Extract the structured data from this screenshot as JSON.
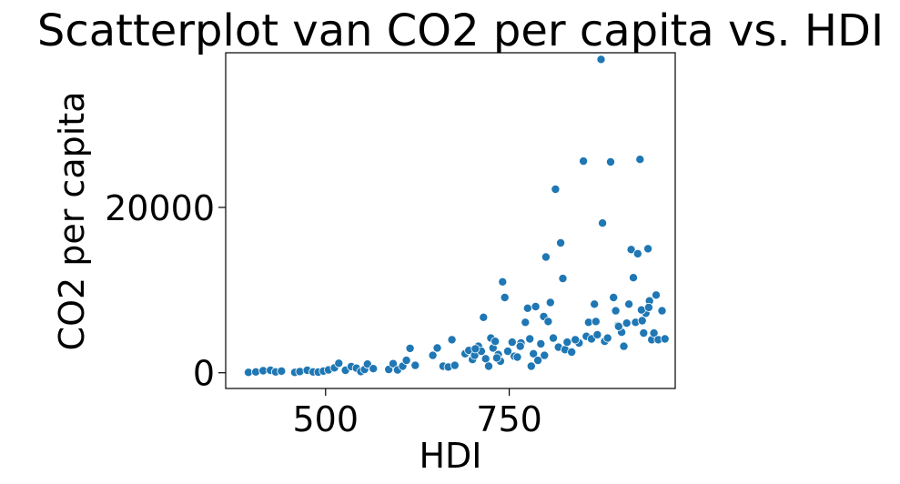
{
  "chart_data": {
    "type": "scatter",
    "title": "Scatterplot van CO2 per capita vs. HDI",
    "xlabel": "HDI",
    "ylabel": "CO2 per capita",
    "xlim": [
      364,
      976
    ],
    "ylim": [
      -1900,
      38700
    ],
    "xticks": [
      500,
      750
    ],
    "yticks": [
      0,
      20000
    ],
    "grid": false,
    "legend": "none",
    "marker_color": "#1f77b4",
    "marker_edge": "#ffffff",
    "points": [
      [
        395,
        50
      ],
      [
        405,
        100
      ],
      [
        415,
        250
      ],
      [
        425,
        300
      ],
      [
        432,
        100
      ],
      [
        440,
        200
      ],
      [
        458,
        50
      ],
      [
        465,
        150
      ],
      [
        475,
        300
      ],
      [
        483,
        100
      ],
      [
        490,
        80
      ],
      [
        497,
        200
      ],
      [
        504,
        350
      ],
      [
        512,
        600
      ],
      [
        518,
        1150
      ],
      [
        527,
        300
      ],
      [
        535,
        750
      ],
      [
        542,
        550
      ],
      [
        548,
        150
      ],
      [
        553,
        400
      ],
      [
        557,
        1050
      ],
      [
        565,
        500
      ],
      [
        586,
        400
      ],
      [
        592,
        1100
      ],
      [
        598,
        350
      ],
      [
        605,
        800
      ],
      [
        610,
        1500
      ],
      [
        615,
        2950
      ],
      [
        622,
        900
      ],
      [
        646,
        2100
      ],
      [
        652,
        3000
      ],
      [
        660,
        800
      ],
      [
        667,
        700
      ],
      [
        672,
        4000
      ],
      [
        676,
        900
      ],
      [
        690,
        2300
      ],
      [
        695,
        2700
      ],
      [
        700,
        1600
      ],
      [
        703,
        2100
      ],
      [
        708,
        3200
      ],
      [
        712,
        2600
      ],
      [
        715,
        6700
      ],
      [
        718,
        1700
      ],
      [
        722,
        800
      ],
      [
        725,
        4200
      ],
      [
        728,
        3000
      ],
      [
        731,
        3800
      ],
      [
        735,
        2200
      ],
      [
        738,
        1400
      ],
      [
        741,
        11000
      ],
      [
        744,
        9100
      ],
      [
        748,
        2600
      ],
      [
        754,
        3700
      ],
      [
        757,
        2000
      ],
      [
        761,
        1900
      ],
      [
        766,
        3600
      ],
      [
        772,
        6100
      ],
      [
        775,
        7800
      ],
      [
        778,
        4100
      ],
      [
        780,
        800
      ],
      [
        783,
        2300
      ],
      [
        786,
        8000
      ],
      [
        789,
        1500
      ],
      [
        793,
        3500
      ],
      [
        797,
        6800
      ],
      [
        800,
        14000
      ],
      [
        803,
        6200
      ],
      [
        806,
        8500
      ],
      [
        810,
        4200
      ],
      [
        813,
        22200
      ],
      [
        817,
        3100
      ],
      [
        820,
        15700
      ],
      [
        823,
        11400
      ],
      [
        826,
        2800
      ],
      [
        829,
        3700
      ],
      [
        835,
        2500
      ],
      [
        845,
        3600
      ],
      [
        851,
        25600
      ],
      [
        855,
        4400
      ],
      [
        858,
        6100
      ],
      [
        862,
        4100
      ],
      [
        866,
        8300
      ],
      [
        870,
        4600
      ],
      [
        875,
        37900
      ],
      [
        877,
        18100
      ],
      [
        880,
        3800
      ],
      [
        884,
        4200
      ],
      [
        888,
        25500
      ],
      [
        892,
        9100
      ],
      [
        895,
        7500
      ],
      [
        898,
        5700
      ],
      [
        903,
        4900
      ],
      [
        906,
        3200
      ],
      [
        910,
        6000
      ],
      [
        913,
        8300
      ],
      [
        916,
        14900
      ],
      [
        919,
        11500
      ],
      [
        922,
        6100
      ],
      [
        925,
        14400
      ],
      [
        928,
        25800
      ],
      [
        931,
        6300
      ],
      [
        933,
        4800
      ],
      [
        936,
        7200
      ],
      [
        939,
        15000
      ],
      [
        941,
        8700
      ],
      [
        944,
        4000
      ],
      [
        947,
        4800
      ],
      [
        950,
        9400
      ],
      [
        953,
        4000
      ],
      [
        958,
        7500
      ],
      [
        962,
        4100
      ],
      [
        930,
        7600
      ],
      [
        940,
        7900
      ],
      [
        899,
        5600
      ],
      [
        868,
        6200
      ],
      [
        840,
        4000
      ],
      [
        798,
        2100
      ],
      [
        765,
        3200
      ],
      [
        733,
        1800
      ],
      [
        704,
        2900
      ]
    ]
  }
}
